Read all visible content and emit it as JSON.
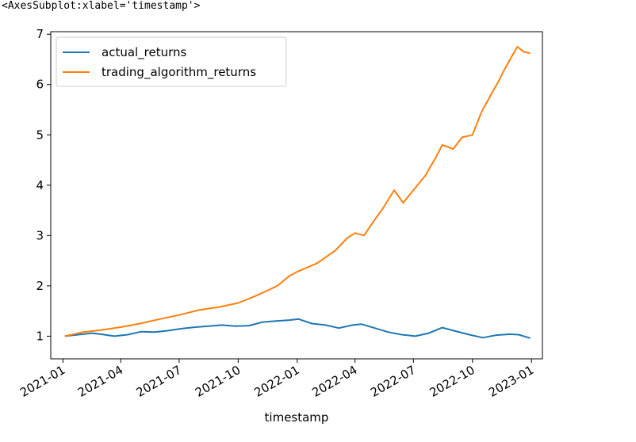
{
  "output_repr": "<AxesSubplot:xlabel='timestamp'>",
  "chart_data": {
    "type": "line",
    "title": "",
    "xlabel": "timestamp",
    "ylabel": "",
    "xlim": [
      "2020-12-13",
      "2023-01-18"
    ],
    "ylim": [
      0.55,
      7.05
    ],
    "x_ticks": [
      "2021-01",
      "2021-04",
      "2021-07",
      "2021-10",
      "2022-01",
      "2022-04",
      "2022-07",
      "2022-10",
      "2023-01"
    ],
    "y_ticks": [
      1,
      2,
      3,
      4,
      5,
      6,
      7
    ],
    "grid": false,
    "legend_position": "top-left",
    "series": [
      {
        "name": "actual_returns",
        "color": "#1f77b4",
        "points": [
          [
            "2021-01-04",
            1.0
          ],
          [
            "2021-01-25",
            1.03
          ],
          [
            "2021-02-15",
            1.06
          ],
          [
            "2021-03-01",
            1.04
          ],
          [
            "2021-03-22",
            1.0
          ],
          [
            "2021-04-12",
            1.03
          ],
          [
            "2021-05-03",
            1.09
          ],
          [
            "2021-05-24",
            1.08
          ],
          [
            "2021-06-14",
            1.11
          ],
          [
            "2021-07-05",
            1.15
          ],
          [
            "2021-07-26",
            1.18
          ],
          [
            "2021-08-16",
            1.2
          ],
          [
            "2021-09-06",
            1.22
          ],
          [
            "2021-09-27",
            1.2
          ],
          [
            "2021-10-18",
            1.21
          ],
          [
            "2021-11-08",
            1.28
          ],
          [
            "2021-11-29",
            1.3
          ],
          [
            "2021-12-20",
            1.32
          ],
          [
            "2022-01-03",
            1.34
          ],
          [
            "2022-01-24",
            1.25
          ],
          [
            "2022-02-14",
            1.22
          ],
          [
            "2022-03-07",
            1.16
          ],
          [
            "2022-03-28",
            1.22
          ],
          [
            "2022-04-11",
            1.24
          ],
          [
            "2022-05-02",
            1.16
          ],
          [
            "2022-05-23",
            1.08
          ],
          [
            "2022-06-13",
            1.03
          ],
          [
            "2022-07-04",
            1.0
          ],
          [
            "2022-07-25",
            1.06
          ],
          [
            "2022-08-15",
            1.17
          ],
          [
            "2022-09-05",
            1.1
          ],
          [
            "2022-09-26",
            1.03
          ],
          [
            "2022-10-17",
            0.97
          ],
          [
            "2022-11-07",
            1.02
          ],
          [
            "2022-11-28",
            1.04
          ],
          [
            "2022-12-12",
            1.03
          ],
          [
            "2022-12-30",
            0.96
          ]
        ]
      },
      {
        "name": "trading_algorithm_returns",
        "color": "#ff7f0e",
        "points": [
          [
            "2021-01-04",
            1.0
          ],
          [
            "2021-02-01",
            1.08
          ],
          [
            "2021-03-01",
            1.12
          ],
          [
            "2021-04-01",
            1.18
          ],
          [
            "2021-05-01",
            1.25
          ],
          [
            "2021-06-01",
            1.34
          ],
          [
            "2021-07-01",
            1.42
          ],
          [
            "2021-08-01",
            1.52
          ],
          [
            "2021-09-01",
            1.58
          ],
          [
            "2021-10-01",
            1.66
          ],
          [
            "2021-11-01",
            1.82
          ],
          [
            "2021-12-01",
            2.0
          ],
          [
            "2021-12-20",
            2.2
          ],
          [
            "2022-01-01",
            2.28
          ],
          [
            "2022-02-01",
            2.45
          ],
          [
            "2022-03-01",
            2.7
          ],
          [
            "2022-03-20",
            2.95
          ],
          [
            "2022-04-01",
            3.05
          ],
          [
            "2022-04-15",
            3.0
          ],
          [
            "2022-05-01",
            3.3
          ],
          [
            "2022-05-15",
            3.55
          ],
          [
            "2022-06-01",
            3.9
          ],
          [
            "2022-06-15",
            3.65
          ],
          [
            "2022-07-01",
            3.9
          ],
          [
            "2022-07-20",
            4.2
          ],
          [
            "2022-08-05",
            4.55
          ],
          [
            "2022-08-15",
            4.8
          ],
          [
            "2022-09-01",
            4.72
          ],
          [
            "2022-09-15",
            4.95
          ],
          [
            "2022-10-01",
            5.0
          ],
          [
            "2022-10-15",
            5.45
          ],
          [
            "2022-11-01",
            5.85
          ],
          [
            "2022-11-10",
            6.05
          ],
          [
            "2022-11-20",
            6.3
          ],
          [
            "2022-12-01",
            6.55
          ],
          [
            "2022-12-10",
            6.75
          ],
          [
            "2022-12-20",
            6.65
          ],
          [
            "2022-12-30",
            6.62
          ]
        ]
      }
    ]
  }
}
